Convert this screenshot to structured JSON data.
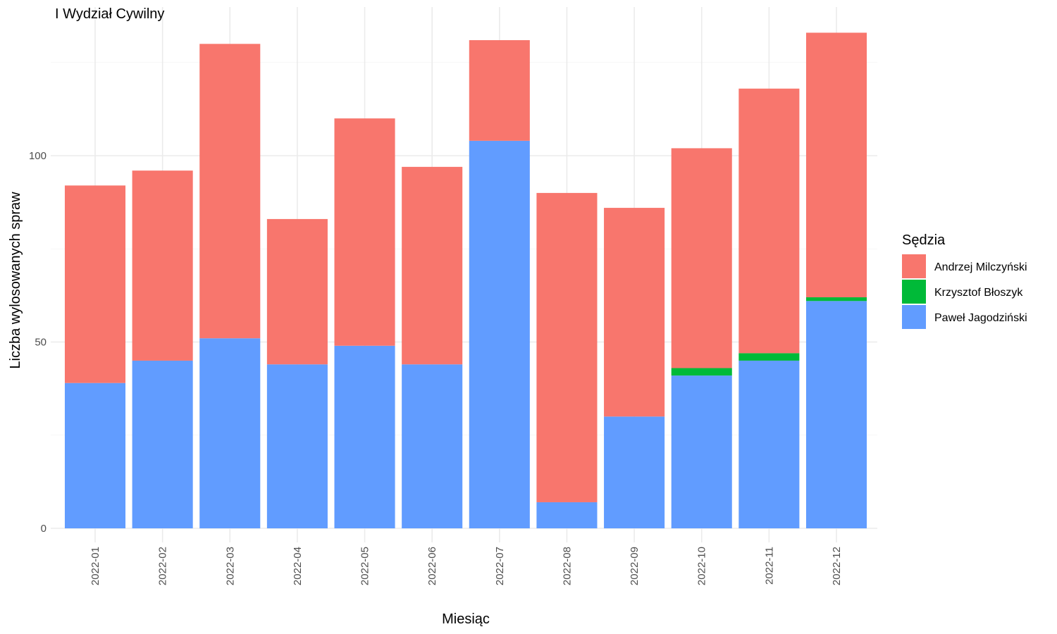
{
  "chart_data": {
    "type": "bar",
    "stacked": true,
    "title": "I Wydział Cywilny",
    "xlabel": "Miesiąc",
    "ylabel": "Liczba wylosowanych spraw",
    "ylim": [
      0,
      140
    ],
    "yticks": [
      0,
      50,
      100
    ],
    "grid": true,
    "legend": {
      "title": "Sędzia",
      "position": "right"
    },
    "categories": [
      "2022-01",
      "2022-02",
      "2022-03",
      "2022-04",
      "2022-05",
      "2022-06",
      "2022-07",
      "2022-08",
      "2022-09",
      "2022-10",
      "2022-11",
      "2022-12"
    ],
    "series": [
      {
        "name": "Paweł Jagodziński",
        "color": "#619CFF",
        "values": [
          39,
          45,
          51,
          44,
          49,
          44,
          104,
          7,
          30,
          41,
          45,
          61
        ]
      },
      {
        "name": "Krzysztof Błoszyk",
        "color": "#00BA38",
        "values": [
          0,
          0,
          0,
          0,
          0,
          0,
          0,
          0,
          0,
          2,
          2,
          1
        ]
      },
      {
        "name": "Andrzej Milczyński",
        "color": "#F8766D",
        "values": [
          53,
          51,
          79,
          39,
          61,
          53,
          27,
          83,
          56,
          59,
          71,
          71
        ]
      }
    ],
    "legend_order": [
      "Andrzej Milczyński",
      "Krzysztof Błoszyk",
      "Paweł Jagodziński"
    ]
  }
}
